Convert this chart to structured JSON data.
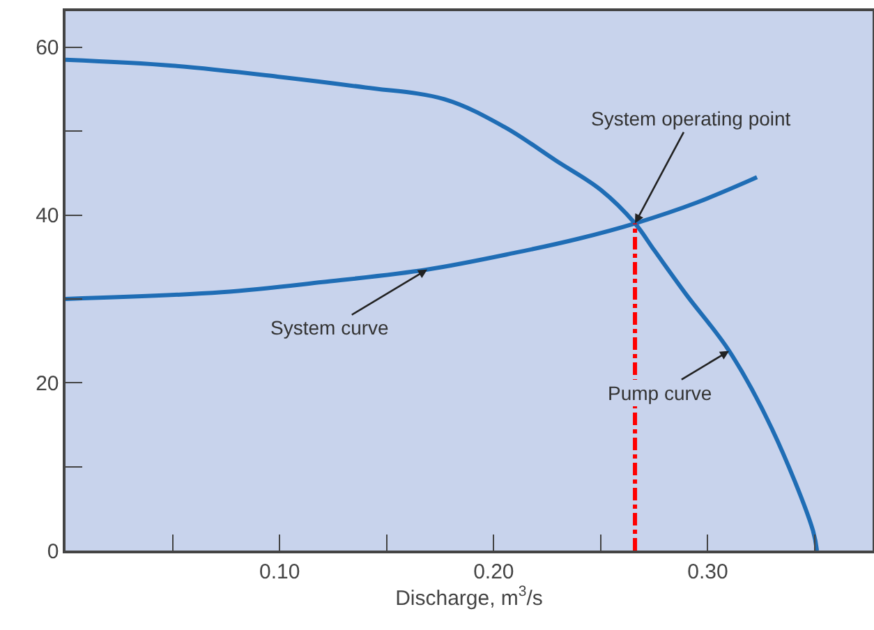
{
  "chart_data": {
    "type": "line",
    "xlabel": "Discharge, m$^{3}$/s",
    "xlim": [
      0,
      0.377
    ],
    "ylim": [
      0,
      64.3
    ],
    "xticks": [
      {
        "value": 0.05,
        "label": null
      },
      {
        "value": 0.1,
        "label": "0.10"
      },
      {
        "value": 0.15,
        "label": null
      },
      {
        "value": 0.2,
        "label": "0.20"
      },
      {
        "value": 0.25,
        "label": null
      },
      {
        "value": 0.3,
        "label": "0.30"
      },
      {
        "value": 0.35,
        "label": null
      }
    ],
    "yticks": [
      0,
      {
        "value": 10,
        "label": null
      },
      20,
      {
        "value": 30,
        "label": null
      },
      40,
      {
        "value": 50,
        "label": null
      },
      60
    ],
    "grid": false,
    "marker": "none",
    "series": [
      {
        "color": "#1f6db5",
        "line_style": "solid",
        "x": [
          0,
          0.05,
          0.099,
          0.14,
          0.177,
          0.205,
          0.229,
          0.25,
          0.266,
          0.275,
          0.29,
          0.31,
          0.33,
          0.349,
          0.351
        ],
        "values": [
          58.5,
          57.8,
          56.5,
          55.2,
          53.8,
          50.5,
          46.5,
          43,
          39,
          35.8,
          30.5,
          23.8,
          14.5,
          2.5,
          0
        ]
      },
      {
        "color": "#1f6db5",
        "line_style": "solid",
        "x": [
          0,
          0.073,
          0.12,
          0.169,
          0.21,
          0.24,
          0.266,
          0.295,
          0.323
        ],
        "values": [
          30,
          30.8,
          32,
          33.5,
          35.5,
          37.2,
          39,
          41.5,
          44.5
        ]
      },
      {
        "color": "#ff0000",
        "line_style": "dashdot",
        "x": [
          0.266,
          0.266
        ],
        "values": [
          0,
          39
        ]
      }
    ],
    "annotations": [
      {
        "text": "System operating point",
        "x": 0.266,
        "y": 39
      },
      {
        "text": "System curve",
        "x": 0.169,
        "y": 33.5
      },
      {
        "text": "Pump curve",
        "x": 0.31,
        "y": 23.8
      }
    ]
  }
}
